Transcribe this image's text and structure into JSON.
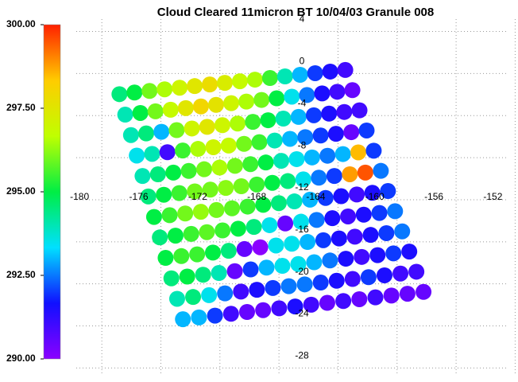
{
  "chart_data": {
    "type": "swath",
    "title": "Cloud Cleared 11micron BT 10/04/03 Granule 008",
    "colorbar": {
      "lim": [
        290,
        300
      ],
      "ticks": [
        {
          "value": 290,
          "label": "290.00"
        },
        {
          "value": 292.5,
          "label": "292.50"
        },
        {
          "value": 295,
          "label": "295.00"
        },
        {
          "value": 297.5,
          "label": "297.50"
        },
        {
          "value": 300,
          "label": "300.00"
        }
      ]
    },
    "colormap": [
      "#8b00ff",
      "#1010ff",
      "#00e0ff",
      "#00ee44",
      "#c0ff00",
      "#ffcc00",
      "#ff2000"
    ],
    "xlim": [
      -182.7,
      -150.3
    ],
    "ylim": [
      -28.8,
      5.7
    ],
    "xticks": [
      -180,
      -176,
      -172,
      -168,
      -164,
      -160,
      -156,
      -152
    ],
    "yticks": [
      4,
      0,
      -4,
      -8,
      -12,
      -16,
      -20,
      -24,
      -28
    ],
    "grid": true,
    "swath_corners": {
      "top_left": [
        -177.3,
        -3.1
      ],
      "top_right": [
        -162.0,
        -0.8
      ],
      "bottom_left": [
        -173.0,
        -24.5
      ],
      "bottom_right": [
        -156.7,
        -21.9
      ]
    },
    "values": [
      [
        294.5,
        295,
        296,
        296.5,
        297,
        297.5,
        297.8,
        297.3,
        296.8,
        296.5,
        295.5,
        294,
        293,
        292,
        291.5,
        291
      ],
      [
        294,
        295,
        296,
        296.8,
        297.5,
        298,
        297.6,
        297,
        296.5,
        296,
        295,
        293.5,
        292.5,
        291.5,
        291,
        290.5
      ],
      [
        294,
        294.5,
        293,
        296,
        297,
        297.5,
        297,
        296.5,
        295.5,
        295,
        294,
        293,
        292,
        291.5,
        291,
        291
      ],
      [
        293.5,
        294,
        291,
        295.5,
        296.5,
        297,
        296.8,
        296,
        295.5,
        294,
        293,
        292.5,
        292,
        291.5,
        290.5,
        292
      ],
      [
        294,
        294.5,
        295,
        295.5,
        296,
        296.5,
        296,
        295.5,
        295,
        294,
        293.5,
        293,
        292.5,
        293,
        298.5,
        292
      ],
      [
        294.5,
        295,
        295.5,
        296,
        296,
        296.2,
        296,
        295.5,
        295,
        294.5,
        293.5,
        292.5,
        292,
        298.8,
        299.5,
        292.5
      ],
      [
        295,
        295.5,
        296,
        296.3,
        296,
        295.8,
        295.5,
        295,
        294.5,
        294,
        293,
        292,
        291.5,
        291,
        291.5,
        292
      ],
      [
        294.5,
        295,
        295.5,
        295.8,
        295.5,
        295,
        294.5,
        293.5,
        290.5,
        293.5,
        292.5,
        291.5,
        291,
        291.5,
        292,
        292.5
      ],
      [
        295,
        295.5,
        295.5,
        295,
        294.5,
        290.5,
        290,
        293.5,
        293.5,
        293,
        292,
        291.5,
        291,
        291.5,
        292,
        292.5
      ],
      [
        294.5,
        295,
        294.5,
        294,
        290.5,
        292,
        293,
        293.5,
        293.5,
        293,
        292.5,
        291.5,
        291,
        291.5,
        292,
        291.5
      ],
      [
        294,
        294.5,
        293.5,
        292.5,
        291,
        291.5,
        292,
        292.5,
        292.5,
        292,
        291.5,
        291,
        292,
        291.5,
        291,
        291
      ],
      [
        293,
        293,
        292,
        291,
        290.5,
        290.5,
        291,
        291.5,
        291,
        290.5,
        291,
        290.5,
        291,
        290.5,
        290.5,
        290.5
      ]
    ]
  }
}
